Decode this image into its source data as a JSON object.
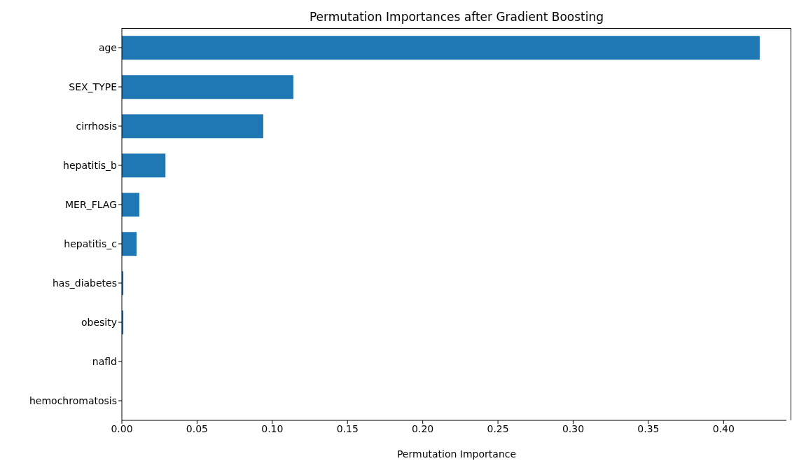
{
  "chart_data": {
    "type": "bar",
    "orientation": "horizontal",
    "title": "Permutation Importances after Gradient Boosting",
    "xlabel": "Permutation Importance",
    "categories": [
      "age",
      "SEX_TYPE",
      "cirrhosis",
      "hepatitis_b",
      "MER_FLAG",
      "hepatitis_c",
      "has_diabetes",
      "obesity",
      "nafld",
      "hemochromatosis"
    ],
    "values": [
      0.424,
      0.114,
      0.094,
      0.029,
      0.0116,
      0.0098,
      0.001,
      0.001,
      0,
      0
    ],
    "color": "#1f77b4",
    "xlim": [
      0,
      0.445
    ],
    "xticks": [
      {
        "value": 0,
        "label": "0.00"
      },
      {
        "value": 0.05,
        "label": "0.05"
      },
      {
        "value": 0.1,
        "label": "0.10"
      },
      {
        "value": 0.15,
        "label": "0.15"
      },
      {
        "value": 0.2,
        "label": "0.20"
      },
      {
        "value": 0.25,
        "label": "0.25"
      },
      {
        "value": 0.3,
        "label": "0.30"
      },
      {
        "value": 0.35,
        "label": "0.35"
      },
      {
        "value": 0.4,
        "label": "0.40"
      }
    ],
    "grid": false,
    "legend": false
  }
}
